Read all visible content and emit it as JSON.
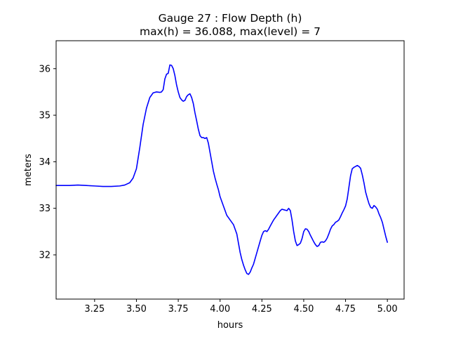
{
  "chart_data": {
    "type": "line",
    "title_line1": "Gauge 27 : Flow Depth (h)",
    "title_line2": "max(h) =  36.088,    max(level) = 7",
    "xlabel": "hours",
    "ylabel": "meters",
    "xlim": [
      3.02,
      5.1
    ],
    "ylim": [
      31.05,
      36.6
    ],
    "xticks": [
      3.25,
      3.5,
      3.75,
      4.0,
      4.25,
      4.5,
      4.75,
      5.0
    ],
    "xtick_labels": [
      "3.25",
      "3.50",
      "3.75",
      "4.00",
      "4.25",
      "4.50",
      "4.75",
      "5.00"
    ],
    "yticks": [
      32,
      33,
      34,
      35,
      36
    ],
    "ytick_labels": [
      "32",
      "33",
      "34",
      "35",
      "36"
    ],
    "grid": false,
    "series": [
      {
        "color": "#0000ff",
        "x": [
          3.02,
          3.1,
          3.15,
          3.2,
          3.25,
          3.3,
          3.35,
          3.4,
          3.43,
          3.46,
          3.48,
          3.5,
          3.52,
          3.54,
          3.56,
          3.58,
          3.6,
          3.62,
          3.64,
          3.65,
          3.66,
          3.67,
          3.68,
          3.69,
          3.7,
          3.71,
          3.72,
          3.73,
          3.74,
          3.75,
          3.76,
          3.77,
          3.78,
          3.79,
          3.8,
          3.81,
          3.82,
          3.83,
          3.84,
          3.85,
          3.86,
          3.87,
          3.88,
          3.89,
          3.9,
          3.91,
          3.92,
          3.93,
          3.94,
          3.95,
          3.96,
          3.97,
          3.98,
          3.99,
          4.0,
          4.02,
          4.04,
          4.06,
          4.08,
          4.1,
          4.11,
          4.12,
          4.13,
          4.14,
          4.15,
          4.16,
          4.17,
          4.18,
          4.19,
          4.2,
          4.22,
          4.24,
          4.25,
          4.26,
          4.27,
          4.28,
          4.29,
          4.3,
          4.32,
          4.34,
          4.36,
          4.37,
          4.38,
          4.39,
          4.4,
          4.41,
          4.42,
          4.43,
          4.44,
          4.45,
          4.46,
          4.47,
          4.48,
          4.49,
          4.5,
          4.51,
          4.52,
          4.53,
          4.54,
          4.55,
          4.56,
          4.57,
          4.58,
          4.59,
          4.6,
          4.61,
          4.62,
          4.63,
          4.64,
          4.65,
          4.66,
          4.67,
          4.68,
          4.69,
          4.7,
          4.71,
          4.72,
          4.73,
          4.74,
          4.75,
          4.76,
          4.77,
          4.78,
          4.79,
          4.8,
          4.81,
          4.82,
          4.83,
          4.84,
          4.85,
          4.86,
          4.87,
          4.88,
          4.89,
          4.9,
          4.91,
          4.92,
          4.93,
          4.94,
          4.95,
          4.96,
          4.97,
          4.98,
          4.99,
          5.0
        ],
        "y": [
          33.49,
          33.49,
          33.5,
          33.49,
          33.48,
          33.47,
          33.47,
          33.48,
          33.5,
          33.55,
          33.65,
          33.85,
          34.3,
          34.8,
          35.15,
          35.38,
          35.48,
          35.5,
          35.49,
          35.5,
          35.55,
          35.78,
          35.88,
          35.9,
          36.08,
          36.07,
          36.0,
          35.85,
          35.65,
          35.5,
          35.38,
          35.33,
          35.3,
          35.32,
          35.4,
          35.44,
          35.46,
          35.38,
          35.25,
          35.05,
          34.88,
          34.7,
          34.56,
          34.52,
          34.52,
          34.5,
          34.52,
          34.4,
          34.2,
          34.0,
          33.8,
          33.65,
          33.52,
          33.4,
          33.25,
          33.05,
          32.85,
          32.75,
          32.65,
          32.45,
          32.25,
          32.05,
          31.9,
          31.78,
          31.68,
          31.6,
          31.58,
          31.63,
          31.72,
          31.8,
          32.05,
          32.3,
          32.42,
          32.5,
          32.52,
          32.5,
          32.55,
          32.62,
          32.75,
          32.85,
          32.95,
          32.98,
          32.97,
          32.96,
          32.95,
          33.0,
          32.95,
          32.75,
          32.5,
          32.3,
          32.2,
          32.22,
          32.25,
          32.35,
          32.5,
          32.56,
          32.55,
          32.5,
          32.42,
          32.35,
          32.28,
          32.22,
          32.18,
          32.2,
          32.27,
          32.28,
          32.27,
          32.3,
          32.36,
          32.45,
          32.55,
          32.62,
          32.65,
          32.7,
          32.72,
          32.75,
          32.82,
          32.9,
          32.97,
          33.05,
          33.2,
          33.45,
          33.7,
          33.85,
          33.88,
          33.9,
          33.92,
          33.9,
          33.86,
          33.72,
          33.55,
          33.35,
          33.22,
          33.1,
          33.02,
          33.0,
          33.06,
          33.03,
          32.98,
          32.88,
          32.8,
          32.7,
          32.55,
          32.4,
          32.27
        ]
      }
    ]
  }
}
